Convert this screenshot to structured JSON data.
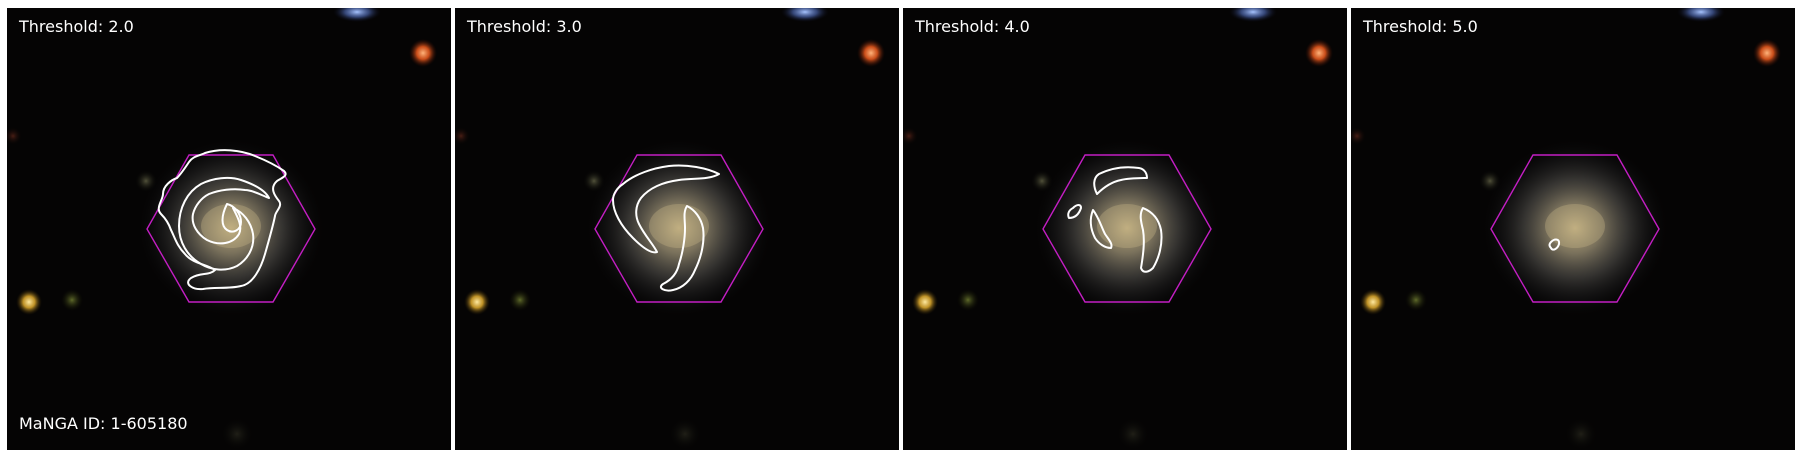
{
  "panels": [
    {
      "threshold_label": "Threshold: 2.0",
      "caption": "MaNGA ID: 1-605180"
    },
    {
      "threshold_label": "Threshold: 3.0"
    },
    {
      "threshold_label": "Threshold: 4.0"
    },
    {
      "threshold_label": "Threshold: 5.0"
    }
  ],
  "colors": {
    "background": "#050404",
    "hexagon": "#c31ec3",
    "contour": "#ffffff",
    "galaxy_core": "#b7a57c"
  }
}
